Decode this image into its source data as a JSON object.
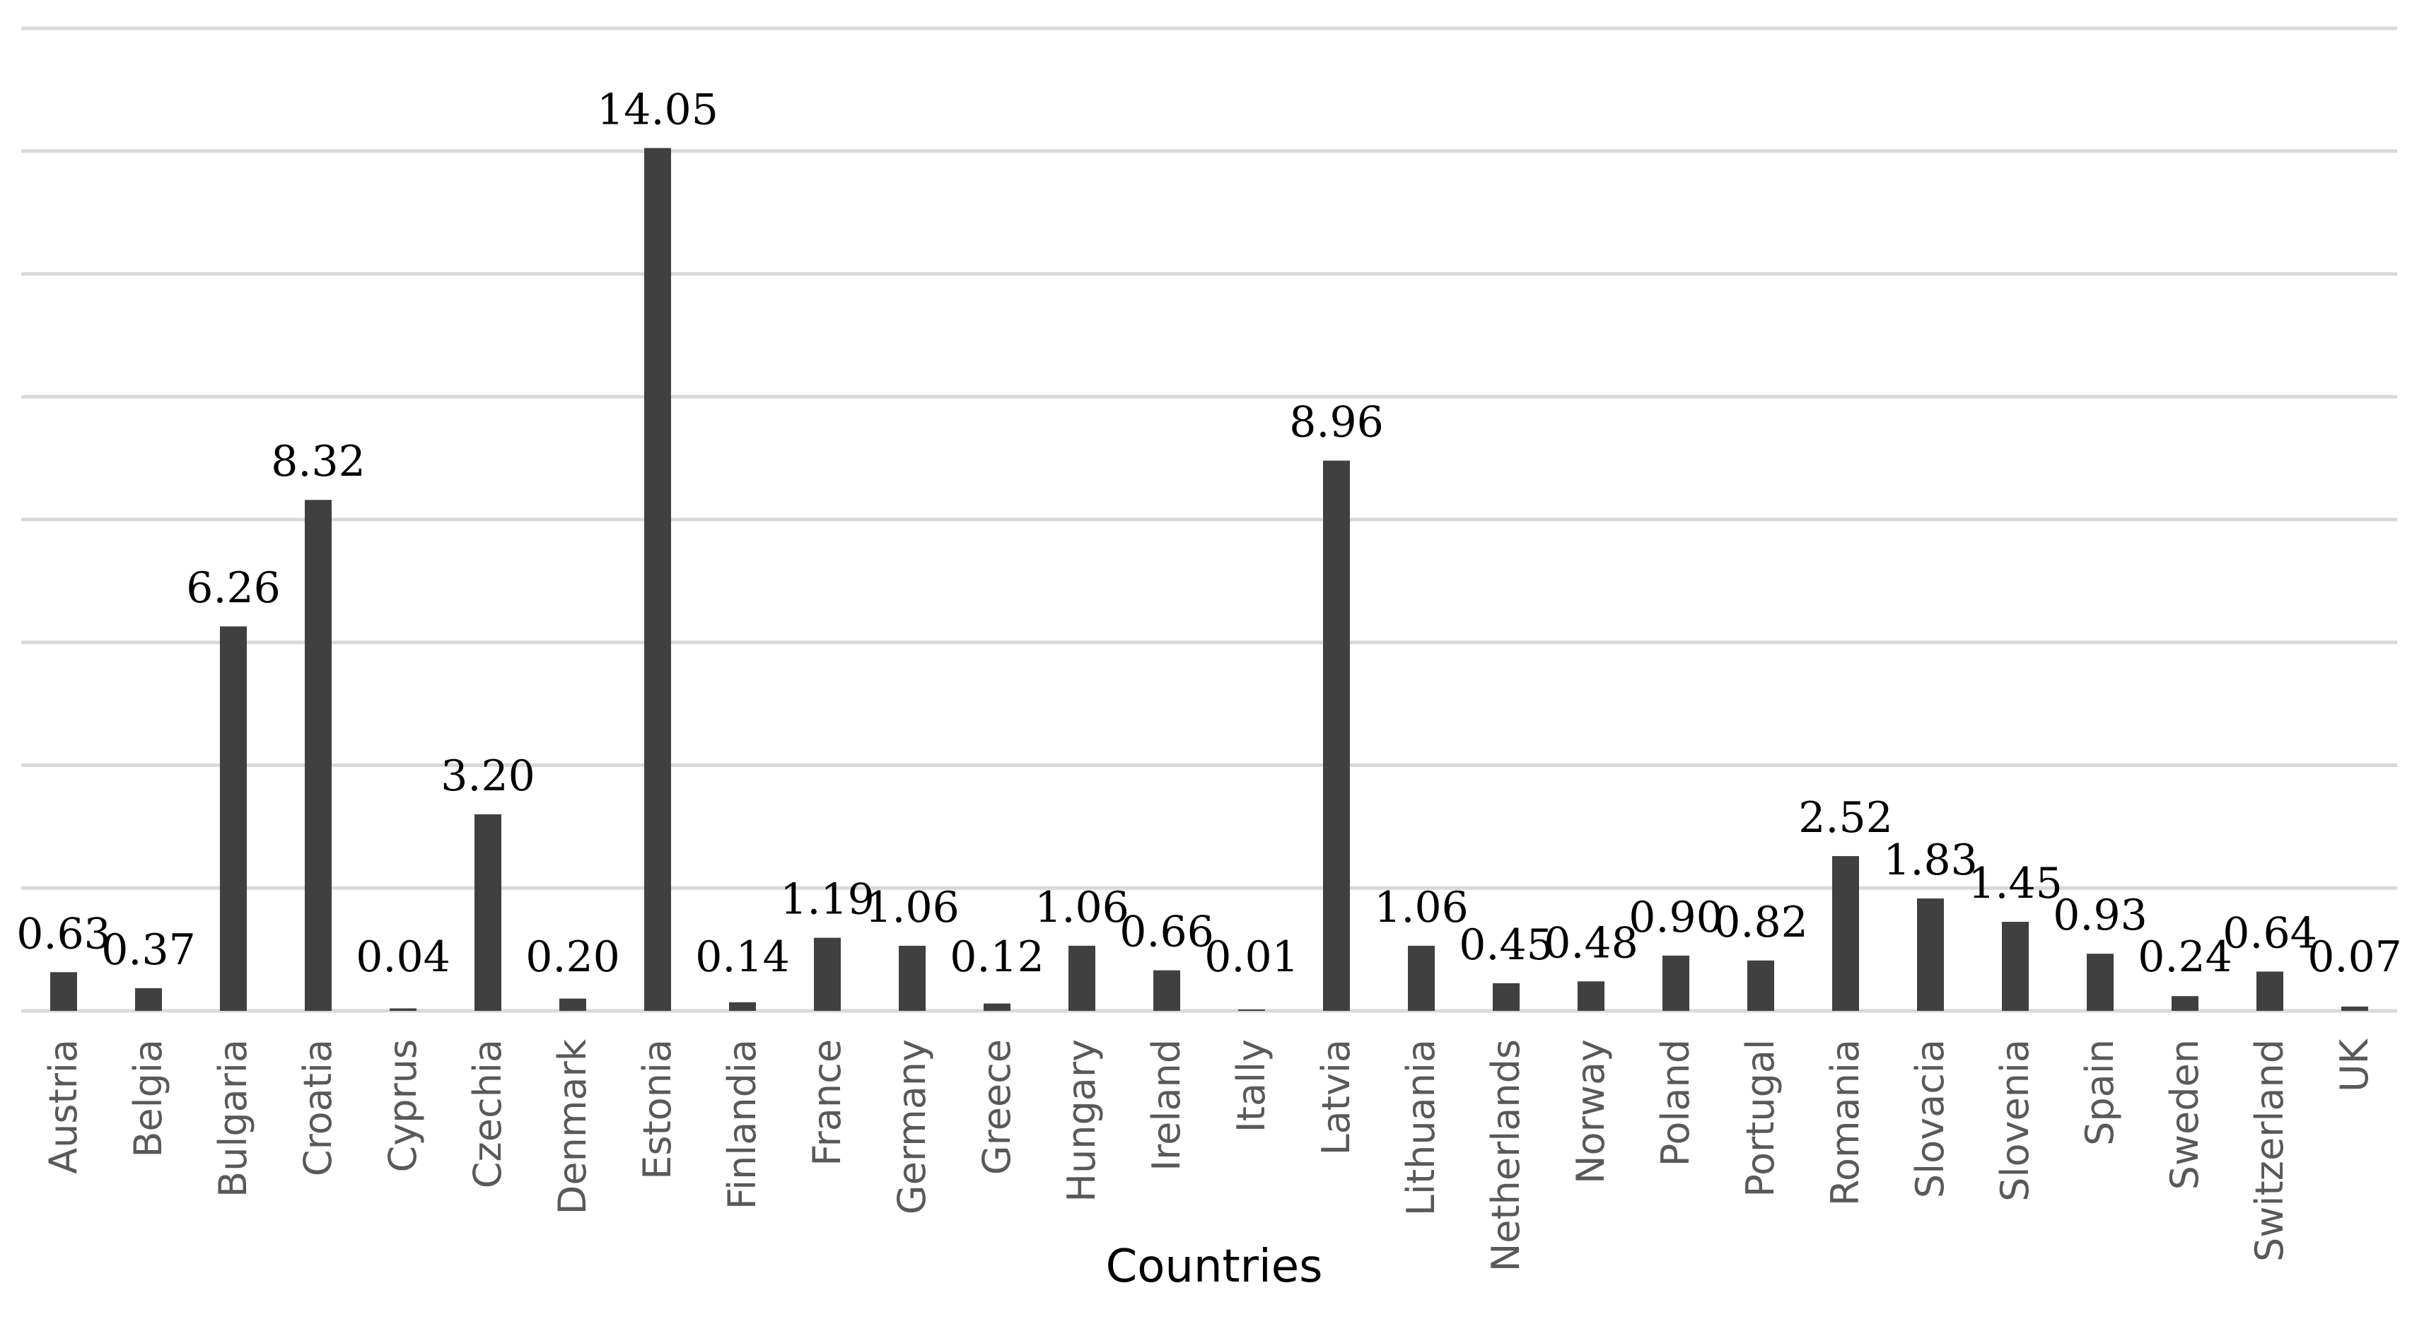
{
  "chart_data": {
    "type": "bar",
    "title": "",
    "xlabel": "Countries",
    "ylabel": "",
    "ylim": [
      0,
      16
    ],
    "grid": true,
    "colors": {
      "bar": "#404040",
      "grid": "#d9d9d9",
      "tick_text": "#595959",
      "label_text": "#000000"
    },
    "categories": [
      "Austria",
      "Belgia",
      "Bulgaria",
      "Croatia",
      "Cyprus",
      "Czechia",
      "Denmark",
      "Estonia",
      "Finlandia",
      "France",
      "Germany",
      "Greece",
      "Hungary",
      "Ireland",
      "Itally",
      "Latvia",
      "Lithuania",
      "Netherlands",
      "Norway",
      "Poland",
      "Portugal",
      "Romania",
      "Slovacia",
      "Slovenia",
      "Spain",
      "Sweden",
      "Switzerland",
      "UK"
    ],
    "values": [
      0.63,
      0.37,
      6.26,
      8.32,
      0.04,
      3.2,
      0.2,
      14.05,
      0.14,
      1.19,
      1.06,
      0.12,
      1.06,
      0.66,
      0.01,
      8.96,
      1.06,
      0.45,
      0.48,
      0.9,
      0.82,
      2.52,
      1.83,
      1.45,
      0.93,
      0.24,
      0.64,
      0.07
    ],
    "data_labels": [
      "0.63",
      "0.37",
      "6.26",
      "8.32",
      "0.04",
      "3.20",
      "0.20",
      "14.05",
      "0.14",
      "1.19",
      "1.06",
      "0.12",
      "1.06",
      "0.66",
      "0.01",
      "8.96",
      "1.06",
      "0.45",
      "0.48",
      "0.90",
      "0.82",
      "2.52",
      "1.83",
      "1.45",
      "0.93",
      "0.24",
      "0.64",
      "0.07"
    ]
  }
}
